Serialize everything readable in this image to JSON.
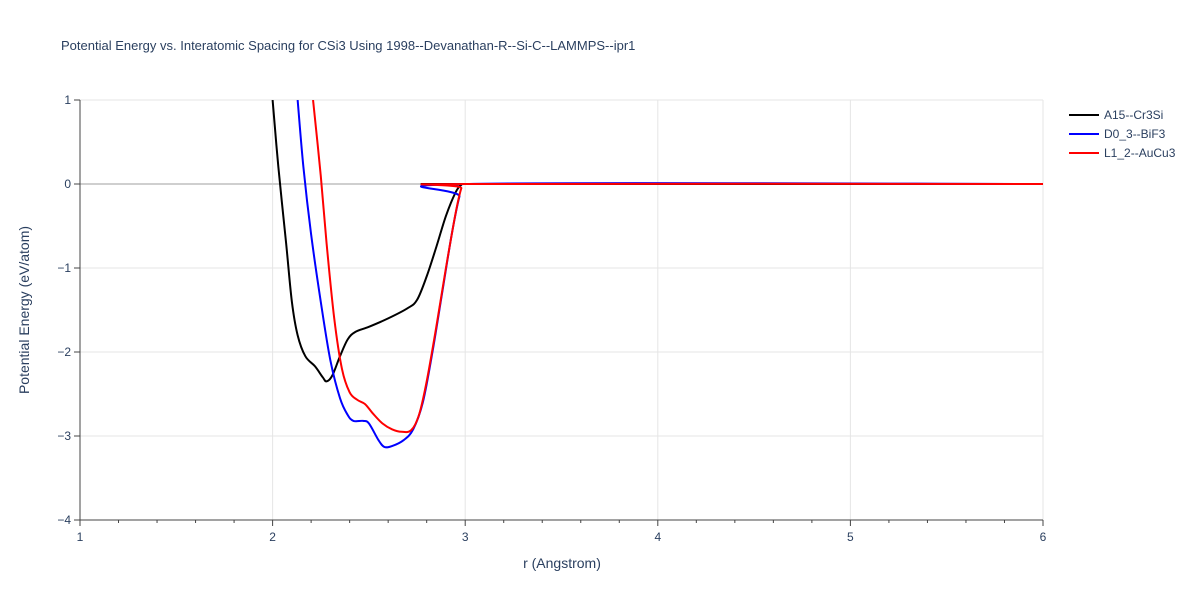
{
  "chart_data": {
    "type": "line",
    "title": "Potential Energy vs. Interatomic Spacing for CSi3 Using 1998--Devanathan-R--Si-C--LAMMPS--ipr1",
    "xlabel": "r (Angstrom)",
    "ylabel": "Potential Energy (eV/atom)",
    "xlim": [
      1,
      6
    ],
    "ylim": [
      -4,
      1
    ],
    "xticks": [
      1,
      2,
      3,
      4,
      5,
      6
    ],
    "yticks": [
      1,
      0,
      -1,
      -2,
      -3,
      -4
    ],
    "ytick_labels": [
      "1",
      "0",
      "−1",
      "−2",
      "−3",
      "−4"
    ],
    "grid": true,
    "legend_position": "top-right",
    "series": [
      {
        "name": "A15--Cr3Si",
        "color": "#000000",
        "points": [
          [
            2.0,
            1.0
          ],
          [
            2.03,
            0.2
          ],
          [
            2.07,
            -0.7
          ],
          [
            2.1,
            -1.4
          ],
          [
            2.13,
            -1.8
          ],
          [
            2.17,
            -2.05
          ],
          [
            2.22,
            -2.17
          ],
          [
            2.26,
            -2.3
          ],
          [
            2.28,
            -2.35
          ],
          [
            2.31,
            -2.28
          ],
          [
            2.35,
            -2.05
          ],
          [
            2.39,
            -1.85
          ],
          [
            2.43,
            -1.76
          ],
          [
            2.5,
            -1.7
          ],
          [
            2.6,
            -1.6
          ],
          [
            2.7,
            -1.48
          ],
          [
            2.75,
            -1.38
          ],
          [
            2.8,
            -1.1
          ],
          [
            2.85,
            -0.75
          ],
          [
            2.9,
            -0.38
          ],
          [
            2.95,
            -0.1
          ],
          [
            2.98,
            -0.01
          ],
          [
            3.0,
            0.0
          ],
          [
            6.0,
            0.0
          ]
        ]
      },
      {
        "name": "D0_3--BiF3",
        "color": "#0000ff",
        "points": [
          [
            2.13,
            1.0
          ],
          [
            2.16,
            0.2
          ],
          [
            2.2,
            -0.6
          ],
          [
            2.25,
            -1.4
          ],
          [
            2.3,
            -2.1
          ],
          [
            2.35,
            -2.55
          ],
          [
            2.39,
            -2.75
          ],
          [
            2.42,
            -2.82
          ],
          [
            2.47,
            -2.82
          ],
          [
            2.5,
            -2.85
          ],
          [
            2.55,
            -3.05
          ],
          [
            2.58,
            -3.13
          ],
          [
            2.62,
            -3.12
          ],
          [
            2.68,
            -3.05
          ],
          [
            2.73,
            -2.92
          ],
          [
            2.78,
            -2.6
          ],
          [
            2.83,
            -2.0
          ],
          [
            2.88,
            -1.3
          ],
          [
            2.93,
            -0.6
          ],
          [
            2.97,
            -0.15
          ],
          [
            3.0,
            0.0
          ],
          [
            6.0,
            0.0
          ]
        ]
      },
      {
        "name": "L1_2--AuCu3",
        "color": "#ff0000",
        "points": [
          [
            2.21,
            1.0
          ],
          [
            2.25,
            0.1
          ],
          [
            2.28,
            -0.7
          ],
          [
            2.32,
            -1.6
          ],
          [
            2.36,
            -2.2
          ],
          [
            2.4,
            -2.48
          ],
          [
            2.44,
            -2.57
          ],
          [
            2.48,
            -2.62
          ],
          [
            2.52,
            -2.73
          ],
          [
            2.57,
            -2.85
          ],
          [
            2.62,
            -2.92
          ],
          [
            2.67,
            -2.95
          ],
          [
            2.72,
            -2.93
          ],
          [
            2.76,
            -2.75
          ],
          [
            2.8,
            -2.35
          ],
          [
            2.85,
            -1.7
          ],
          [
            2.9,
            -1.0
          ],
          [
            2.95,
            -0.35
          ],
          [
            2.98,
            -0.05
          ],
          [
            3.0,
            0.0
          ],
          [
            6.0,
            0.0
          ]
        ]
      }
    ]
  }
}
